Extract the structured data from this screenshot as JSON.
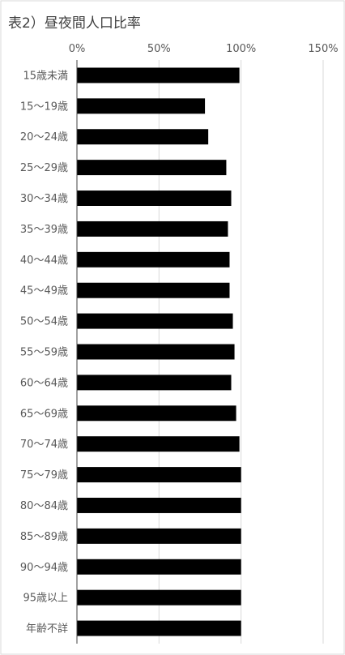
{
  "chart_data": {
    "type": "bar",
    "orientation": "horizontal",
    "title": "表2）昼夜間人口比率",
    "xlim": [
      0,
      150
    ],
    "x_ticks": [
      "0%",
      "50%",
      "100%",
      "150%"
    ],
    "x_tick_values": [
      0,
      50,
      100,
      150
    ],
    "grid": true,
    "bar_color": "#000000",
    "categories": [
      "15歳未満",
      "15～19歳",
      "20～24歳",
      "25～29歳",
      "30～34歳",
      "35～39歳",
      "40～44歳",
      "45～49歳",
      "50～54歳",
      "55～59歳",
      "60～64歳",
      "65～69歳",
      "70～74歳",
      "75～79歳",
      "80～84歳",
      "85～89歳",
      "90～94歳",
      "95歳以上",
      "年齢不詳"
    ],
    "values": [
      99,
      78,
      80,
      91,
      94,
      92,
      93,
      93,
      95,
      96,
      94,
      97,
      99,
      100,
      100,
      100,
      100,
      100,
      100
    ]
  }
}
